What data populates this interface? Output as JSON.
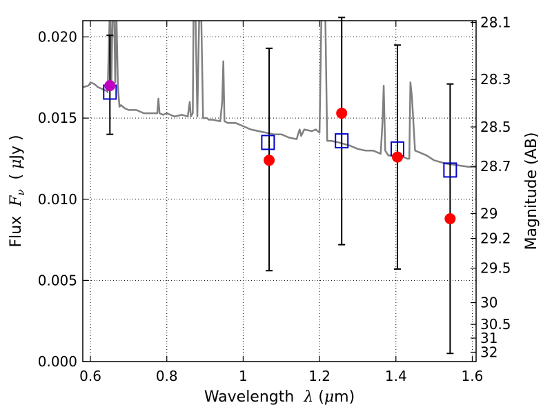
{
  "chart_data": {
    "type": "scatter",
    "title": "",
    "xlabel": {
      "prefix": "Wavelength  ",
      "symbol": "λ",
      "suffix": " (",
      "unit_symbol": "μ",
      "unit_tail": "m)"
    },
    "ylabel": {
      "prefix": "Flux  ",
      "symbol": "F",
      "subscript": "ν",
      "mid": "  ( ",
      "unit_symbol": "μ",
      "unit_tail": "Jy )"
    },
    "y2label": "Magnitude (AB)",
    "xlim": [
      0.58,
      1.61
    ],
    "ylim": [
      0.0,
      0.021
    ],
    "grid": true,
    "x_ticks": [
      0.6,
      0.8,
      1.0,
      1.2,
      1.4,
      1.6
    ],
    "x_tick_labels": [
      "0.6",
      "0.8",
      "1",
      "1.2",
      "1.4",
      "1.6"
    ],
    "y_ticks": [
      0.0,
      0.005,
      0.01,
      0.015,
      0.02
    ],
    "y_tick_labels": [
      "0.000",
      "0.005",
      "0.010",
      "0.015",
      "0.020"
    ],
    "y2_ticks": [
      {
        "mag": 28.1,
        "label": "28.1"
      },
      {
        "mag": 28.3,
        "label": "28.3"
      },
      {
        "mag": 28.5,
        "label": "28.5"
      },
      {
        "mag": 28.7,
        "label": "28.7"
      },
      {
        "mag": 29.0,
        "label": "29"
      },
      {
        "mag": 29.2,
        "label": "29.2"
      },
      {
        "mag": 29.5,
        "label": "29.5"
      },
      {
        "mag": 30.0,
        "label": "30"
      },
      {
        "mag": 30.5,
        "label": "30.5"
      },
      {
        "mag": 31.0,
        "label": "31"
      },
      {
        "mag": 32.0,
        "label": "32"
      }
    ],
    "colors": {
      "model": "#808080",
      "observed": "#ff0000",
      "observed_first": "#bf00bf",
      "model_box": "#0000cc",
      "errorbar": "#000000",
      "grid": "#000000"
    },
    "model_spectrum": {
      "wavelength": [
        0.58,
        0.595,
        0.6,
        0.61,
        0.62,
        0.63,
        0.64,
        0.645,
        0.65,
        0.652,
        0.655,
        0.658,
        0.662,
        0.665,
        0.668,
        0.672,
        0.676,
        0.68,
        0.69,
        0.7,
        0.72,
        0.74,
        0.76,
        0.775,
        0.778,
        0.781,
        0.79,
        0.8,
        0.82,
        0.84,
        0.855,
        0.86,
        0.863,
        0.868,
        0.87,
        0.875,
        0.88,
        0.885,
        0.89,
        0.895,
        0.9,
        0.905,
        0.91,
        0.92,
        0.94,
        0.945,
        0.948,
        0.951,
        0.96,
        0.98,
        1.0,
        1.02,
        1.04,
        1.06,
        1.08,
        1.09,
        1.1,
        1.12,
        1.14,
        1.145,
        1.148,
        1.152,
        1.16,
        1.18,
        1.19,
        1.2,
        1.205,
        1.21,
        1.215,
        1.22,
        1.23,
        1.25,
        1.28,
        1.3,
        1.32,
        1.34,
        1.36,
        1.365,
        1.368,
        1.372,
        1.38,
        1.4,
        1.42,
        1.43,
        1.435,
        1.438,
        1.442,
        1.45,
        1.48,
        1.5,
        1.53,
        1.56,
        1.59,
        1.61
      ],
      "flux": [
        0.0169,
        0.017,
        0.0172,
        0.0171,
        0.0169,
        0.0168,
        0.0167,
        0.0166,
        0.021,
        0.0215,
        0.0172,
        0.0215,
        0.0215,
        0.0172,
        0.0215,
        0.017,
        0.0157,
        0.0158,
        0.0156,
        0.0155,
        0.0155,
        0.0153,
        0.0153,
        0.0153,
        0.0162,
        0.0153,
        0.0152,
        0.0153,
        0.0151,
        0.0152,
        0.0151,
        0.016,
        0.0151,
        0.0153,
        0.0215,
        0.0215,
        0.0151,
        0.0215,
        0.0215,
        0.015,
        0.015,
        0.015,
        0.0149,
        0.0149,
        0.0148,
        0.016,
        0.0185,
        0.0148,
        0.0147,
        0.0147,
        0.0145,
        0.0143,
        0.0142,
        0.0141,
        0.014,
        0.014,
        0.014,
        0.0138,
        0.0137,
        0.0141,
        0.0143,
        0.0139,
        0.0143,
        0.0142,
        0.0143,
        0.0141,
        0.0215,
        0.0215,
        0.0215,
        0.0136,
        0.0136,
        0.0135,
        0.0133,
        0.0131,
        0.013,
        0.013,
        0.0128,
        0.0148,
        0.017,
        0.013,
        0.0127,
        0.0127,
        0.0126,
        0.0125,
        0.0125,
        0.0172,
        0.0163,
        0.013,
        0.0127,
        0.0124,
        0.0122,
        0.0121,
        0.012,
        0.012
      ]
    },
    "model_boxes": {
      "x": [
        0.651,
        1.065,
        1.258,
        1.404,
        1.542
      ],
      "y": [
        0.0166,
        0.0135,
        0.0136,
        0.0131,
        0.0118
      ]
    },
    "observed": {
      "x": [
        0.651,
        1.068,
        1.258,
        1.404,
        1.542
      ],
      "y": [
        0.017,
        0.0124,
        0.0153,
        0.0126,
        0.0088
      ],
      "yerr_low": [
        0.014,
        0.0056,
        0.0072,
        0.0057,
        0.0005
      ],
      "yerr_high": [
        0.0201,
        0.0193,
        0.0212,
        0.0195,
        0.0171
      ]
    }
  }
}
